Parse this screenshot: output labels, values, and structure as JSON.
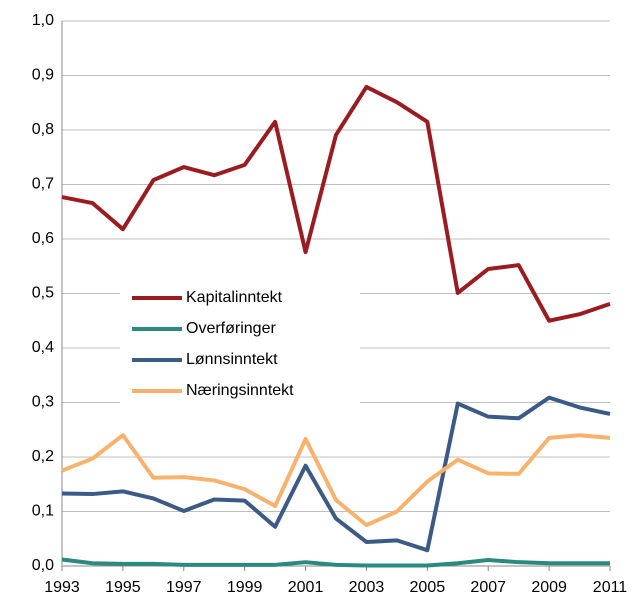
{
  "chart_data": {
    "type": "line",
    "x": [
      1993,
      1994,
      1995,
      1996,
      1997,
      1998,
      1999,
      2000,
      2001,
      2002,
      2003,
      2004,
      2005,
      2006,
      2007,
      2008,
      2009,
      2010,
      2011
    ],
    "xlim": [
      1993,
      2011
    ],
    "xticks": [
      1993,
      1995,
      1997,
      1999,
      2001,
      2003,
      2005,
      2007,
      2009,
      2011
    ],
    "ylim": [
      0,
      1
    ],
    "yticks": [
      {
        "value": 0,
        "label": "0,0"
      },
      {
        "value": 0.1,
        "label": "0,1"
      },
      {
        "value": 0.2,
        "label": "0,2"
      },
      {
        "value": 0.3,
        "label": "0,3"
      },
      {
        "value": 0.4,
        "label": "0,4"
      },
      {
        "value": 0.5,
        "label": "0,5"
      },
      {
        "value": 0.6,
        "label": "0,6"
      },
      {
        "value": 0.7,
        "label": "0,7"
      },
      {
        "value": 0.8,
        "label": "0,8"
      },
      {
        "value": 0.9,
        "label": "0,9"
      },
      {
        "value": 1,
        "label": "1,0"
      }
    ],
    "grid": true,
    "legend": "center-left",
    "series": [
      {
        "name": "Kapitalinntekt",
        "color": "#9b1c20",
        "values": [
          0.677,
          0.666,
          0.618,
          0.708,
          0.732,
          0.717,
          0.736,
          0.815,
          0.576,
          0.791,
          0.879,
          0.851,
          0.815,
          0.501,
          0.545,
          0.552,
          0.45,
          0.462,
          0.481
        ]
      },
      {
        "name": "Overføringer",
        "color": "#2a8a7e",
        "values": [
          0.012,
          0.005,
          0.004,
          0.004,
          0.002,
          0.002,
          0.002,
          0.002,
          0.007,
          0.002,
          0.001,
          0.001,
          0.001,
          0.005,
          0.011,
          0.007,
          0.005,
          0.005,
          0.005
        ]
      },
      {
        "name": "Lønnsinntekt",
        "color": "#3b5a85",
        "values": [
          0.133,
          0.132,
          0.137,
          0.124,
          0.101,
          0.122,
          0.12,
          0.072,
          0.184,
          0.087,
          0.044,
          0.047,
          0.029,
          0.298,
          0.274,
          0.271,
          0.309,
          0.291,
          0.279
        ]
      },
      {
        "name": "Næringsinntekt",
        "color": "#f9b26e",
        "values": [
          0.175,
          0.197,
          0.24,
          0.162,
          0.163,
          0.157,
          0.141,
          0.11,
          0.233,
          0.121,
          0.075,
          0.1,
          0.155,
          0.195,
          0.17,
          0.169,
          0.235,
          0.24,
          0.235
        ]
      }
    ]
  }
}
